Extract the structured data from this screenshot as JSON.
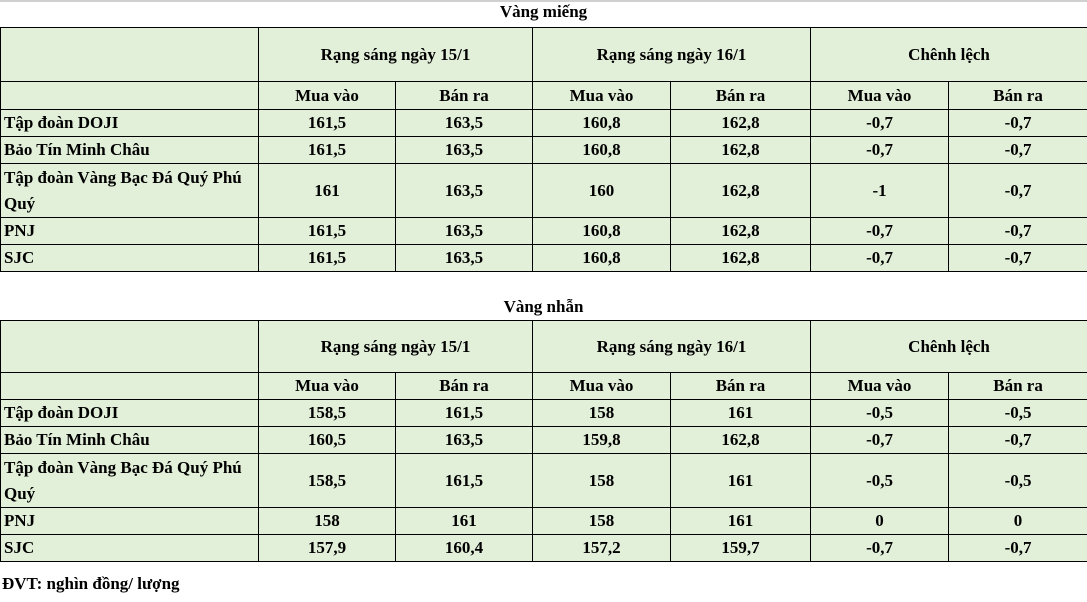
{
  "unit_note": "ĐVT: nghìn đồng/ lượng",
  "tables": [
    {
      "title": "Vàng miếng",
      "group_headers": [
        "Rạng sáng ngày 15/1",
        "Rạng sáng ngày 16/1",
        "Chênh lệch"
      ],
      "sub_headers": [
        "Mua vào",
        "Bán ra",
        "Mua vào",
        "Bán ra",
        "Mua vào",
        "Bán ra"
      ],
      "rows": [
        {
          "name": "Tập đoàn DOJI",
          "values": [
            "161,5",
            "163,5",
            "160,8",
            "162,8",
            "-0,7",
            "-0,7"
          ]
        },
        {
          "name": "Bảo Tín Minh Châu",
          "values": [
            "161,5",
            "163,5",
            "160,8",
            "162,8",
            "-0,7",
            "-0,7"
          ]
        },
        {
          "name": "Tập đoàn Vàng Bạc Đá Quý Phú Quý",
          "values": [
            "161",
            "163,5",
            "160",
            "162,8",
            "-1",
            "-0,7"
          ]
        },
        {
          "name": "PNJ",
          "values": [
            "161,5",
            "163,5",
            "160,8",
            "162,8",
            "-0,7",
            "-0,7"
          ]
        },
        {
          "name": "SJC",
          "values": [
            "161,5",
            "163,5",
            "160,8",
            "162,8",
            "-0,7",
            "-0,7"
          ]
        }
      ]
    },
    {
      "title": "Vàng nhẫn",
      "group_headers": [
        "Rạng sáng ngày 15/1",
        "Rạng sáng ngày 16/1",
        "Chênh lệch"
      ],
      "sub_headers": [
        "Mua vào",
        "Bán ra",
        "Mua vào",
        "Bán ra",
        "Mua vào",
        "Bán ra"
      ],
      "rows": [
        {
          "name": "Tập đoàn DOJI",
          "values": [
            "158,5",
            "161,5",
            "158",
            "161",
            "-0,5",
            "-0,5"
          ]
        },
        {
          "name": "Bảo Tín Minh Châu",
          "values": [
            "160,5",
            "163,5",
            "159,8",
            "162,8",
            "-0,7",
            "-0,7"
          ]
        },
        {
          "name": "Tập đoàn Vàng Bạc Đá Quý Phú Quý",
          "values": [
            "158,5",
            "161,5",
            "158",
            "161",
            "-0,5",
            "-0,5"
          ]
        },
        {
          "name": "PNJ",
          "values": [
            "158",
            "161",
            "158",
            "161",
            "0",
            "0"
          ]
        },
        {
          "name": "SJC",
          "values": [
            "157,9",
            "160,4",
            "157,2",
            "159,7",
            "-0,7",
            "-0,7"
          ]
        }
      ]
    }
  ]
}
